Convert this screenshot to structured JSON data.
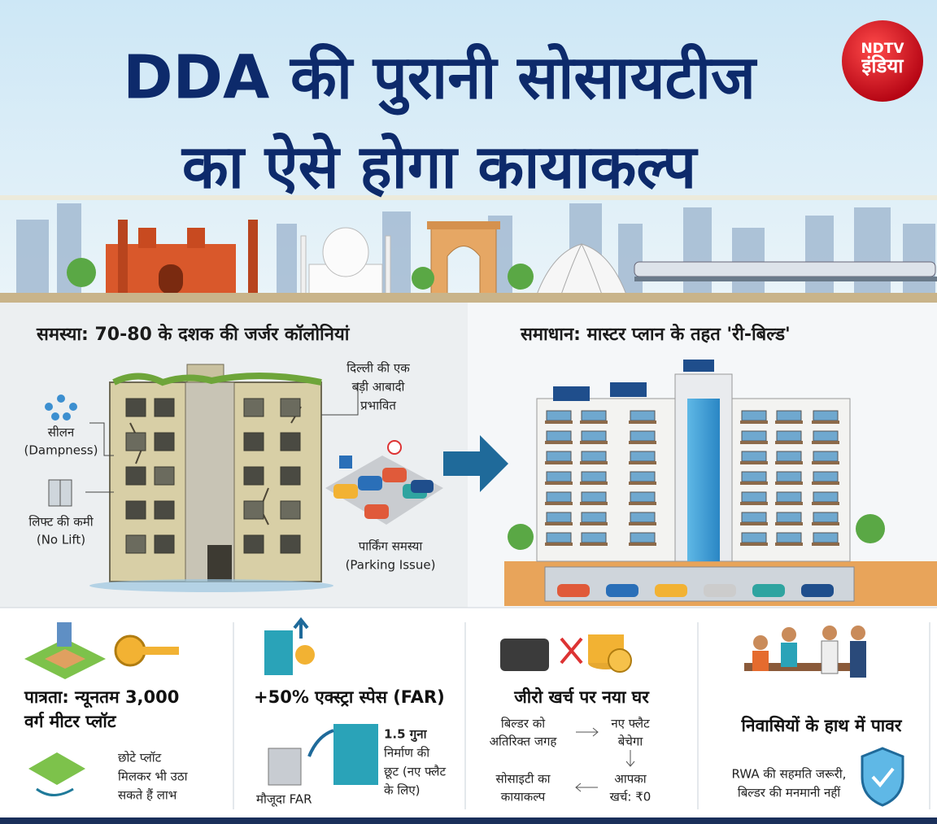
{
  "header": {
    "title_lines": [
      "DDA की पुरानी सोसायटीज",
      "का ऐसे होगा कायाकल्प"
    ],
    "logo": {
      "top": "NDTV",
      "bottom": "इंडिया"
    }
  },
  "problem": {
    "heading": "समस्या: 70-80 के दशक की जर्जर कॉलोनियां",
    "labels": {
      "population": [
        "दिल्ली की एक",
        "बड़ी आबादी",
        "प्रभावित"
      ],
      "dampness": [
        "सीलन",
        "(Dampness)"
      ],
      "lift": [
        "लिफ्ट की कमी",
        "(No Lift)"
      ],
      "parking": [
        "पार्किंग समस्या",
        "(Parking Issue)"
      ]
    }
  },
  "solution": {
    "heading": "समाधान: मास्टर प्लान के तहत 'री-बिल्ड'"
  },
  "features": [
    {
      "title": [
        "पात्रता: न्यूनतम 3,000",
        "वर्ग मीटर प्लॉट"
      ],
      "note": [
        "छोटे प्लॉट",
        "मिलकर भी उठा",
        "सकते हैं लाभ"
      ]
    },
    {
      "title": [
        "+50% एक्स्ट्रा स्पेस (FAR)"
      ],
      "existing": "मौजूदा FAR",
      "note": [
        "1.5 गुना",
        "निर्माण की",
        "छूट (नए फ्लैट",
        "के लिए)"
      ]
    },
    {
      "title": [
        "जीरो खर्च पर नया घर"
      ],
      "flow": [
        [
          "बिल्डर को",
          "अतिरिक्त जगह"
        ],
        [
          "नए फ्लैट",
          "बेचेगा"
        ],
        [
          "आपका",
          "खर्च: ₹0"
        ],
        [
          "सोसाइटी का",
          "कायाकल्प"
        ]
      ]
    },
    {
      "title": [
        "निवासियों के हाथ में पावर"
      ],
      "note": [
        "RWA की सहमति जरूरी,",
        "बिल्डर की मनमानी नहीं"
      ]
    }
  ]
}
